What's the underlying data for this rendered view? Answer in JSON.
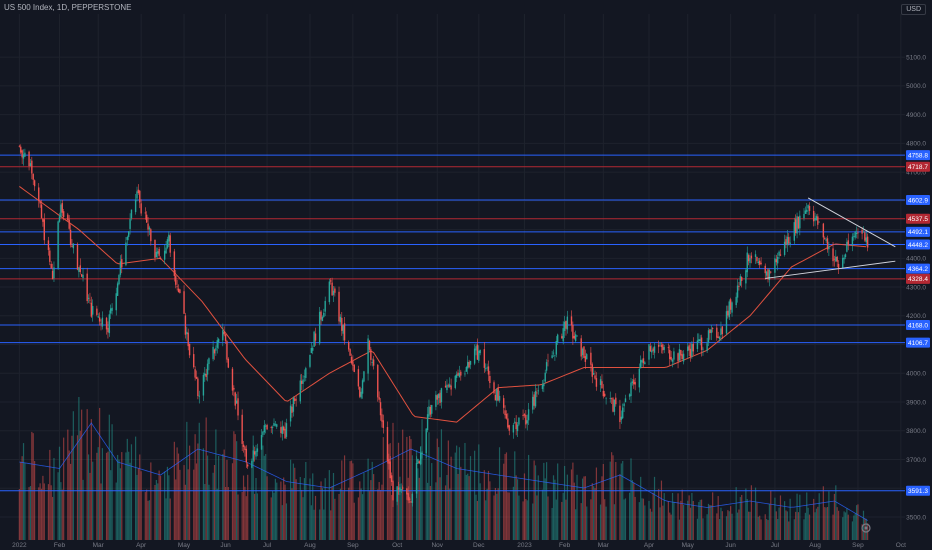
{
  "header": {
    "title": "US 500 Index, 1D, PEPPERSTONE",
    "currency": "USD"
  },
  "colors": {
    "background": "#131722",
    "up": "#26a69a",
    "down": "#ef5350",
    "ma": "#e0513f",
    "volume_ma": "#2962ff",
    "blue_level": "#2962ff",
    "red_level": "#b22833",
    "trendline": "#d1d4dc",
    "grid": "#1e222d"
  },
  "chart_data": {
    "type": "candlestick",
    "symbol": "US 500 Index",
    "interval": "1D",
    "source": "PEPPERSTONE",
    "y_range": [
      3420,
      5250
    ],
    "x_range": [
      "2021-12-20",
      "2023-10-05"
    ],
    "y_ticks": [
      3400,
      3500,
      3600,
      3700,
      3800,
      3900,
      4000,
      4100,
      4200,
      4300,
      4400,
      4500,
      4600,
      4700,
      4800,
      4900,
      5000,
      5100
    ],
    "y_tick_labels": [
      "3400.0",
      "3500.0",
      "3600.0",
      "3700.0",
      "3800.0",
      "3900.0",
      "4000.0",
      "4100.0",
      "4200.0",
      "4300.0",
      "4400.0",
      "4500.0",
      "4600.0",
      "4700.0",
      "4800.0",
      "4900.0",
      "5000.0",
      "5100.0"
    ],
    "x_ticks": [
      {
        "date": "2022-01-03",
        "label": "2022"
      },
      {
        "date": "2022-02-01",
        "label": "Feb"
      },
      {
        "date": "2022-03-01",
        "label": "Mar"
      },
      {
        "date": "2022-04-01",
        "label": "Apr"
      },
      {
        "date": "2022-05-02",
        "label": "May"
      },
      {
        "date": "2022-06-01",
        "label": "Jun"
      },
      {
        "date": "2022-07-01",
        "label": "Jul"
      },
      {
        "date": "2022-08-01",
        "label": "Aug"
      },
      {
        "date": "2022-09-01",
        "label": "Sep"
      },
      {
        "date": "2022-10-03",
        "label": "Oct"
      },
      {
        "date": "2022-11-01",
        "label": "Nov"
      },
      {
        "date": "2022-12-01",
        "label": "Dec"
      },
      {
        "date": "2023-01-03",
        "label": "2023"
      },
      {
        "date": "2023-02-01",
        "label": "Feb"
      },
      {
        "date": "2023-03-01",
        "label": "Mar"
      },
      {
        "date": "2023-04-03",
        "label": "Apr"
      },
      {
        "date": "2023-05-01",
        "label": "May"
      },
      {
        "date": "2023-06-01",
        "label": "Jun"
      },
      {
        "date": "2023-07-03",
        "label": "Jul"
      },
      {
        "date": "2023-08-01",
        "label": "Aug"
      },
      {
        "date": "2023-09-01",
        "label": "Sep"
      },
      {
        "date": "2023-10-02",
        "label": "Oct"
      }
    ],
    "price_path": [
      {
        "date": "2022-01-03",
        "close": 4790
      },
      {
        "date": "2022-01-12",
        "close": 4720
      },
      {
        "date": "2022-01-27",
        "close": 4330
      },
      {
        "date": "2022-02-02",
        "close": 4590
      },
      {
        "date": "2022-02-24",
        "close": 4220
      },
      {
        "date": "2022-03-08",
        "close": 4170
      },
      {
        "date": "2022-03-29",
        "close": 4630
      },
      {
        "date": "2022-04-12",
        "close": 4400
      },
      {
        "date": "2022-04-21",
        "close": 4460
      },
      {
        "date": "2022-05-12",
        "close": 3930
      },
      {
        "date": "2022-05-30",
        "close": 4160
      },
      {
        "date": "2022-06-16",
        "close": 3680
      },
      {
        "date": "2022-06-30",
        "close": 3820
      },
      {
        "date": "2022-07-14",
        "close": 3800
      },
      {
        "date": "2022-08-16",
        "close": 4310
      },
      {
        "date": "2022-09-06",
        "close": 3920
      },
      {
        "date": "2022-09-12",
        "close": 4130
      },
      {
        "date": "2022-09-30",
        "close": 3580
      },
      {
        "date": "2022-10-13",
        "close": 3580
      },
      {
        "date": "2022-10-27",
        "close": 3880
      },
      {
        "date": "2022-11-14",
        "close": 3980
      },
      {
        "date": "2022-12-01",
        "close": 4080
      },
      {
        "date": "2022-12-22",
        "close": 3820
      },
      {
        "date": "2023-01-05",
        "close": 3850
      },
      {
        "date": "2023-02-02",
        "close": 4180
      },
      {
        "date": "2023-02-24",
        "close": 3980
      },
      {
        "date": "2023-03-13",
        "close": 3850
      },
      {
        "date": "2023-04-03",
        "close": 4100
      },
      {
        "date": "2023-04-25",
        "close": 4060
      },
      {
        "date": "2023-05-25",
        "close": 4150
      },
      {
        "date": "2023-06-15",
        "close": 4420
      },
      {
        "date": "2023-06-26",
        "close": 4330
      },
      {
        "date": "2023-07-27",
        "close": 4590
      },
      {
        "date": "2023-08-18",
        "close": 4370
      },
      {
        "date": "2023-09-01",
        "close": 4510
      },
      {
        "date": "2023-09-08",
        "close": 4460
      }
    ],
    "moving_average": [
      {
        "date": "2022-01-03",
        "value": 4650
      },
      {
        "date": "2022-02-15",
        "value": 4500
      },
      {
        "date": "2022-03-15",
        "value": 4380
      },
      {
        "date": "2022-04-15",
        "value": 4400
      },
      {
        "date": "2022-05-15",
        "value": 4250
      },
      {
        "date": "2022-06-15",
        "value": 4050
      },
      {
        "date": "2022-07-15",
        "value": 3900
      },
      {
        "date": "2022-08-15",
        "value": 4000
      },
      {
        "date": "2022-09-15",
        "value": 4080
      },
      {
        "date": "2022-10-15",
        "value": 3850
      },
      {
        "date": "2022-11-15",
        "value": 3830
      },
      {
        "date": "2022-12-15",
        "value": 3950
      },
      {
        "date": "2023-01-15",
        "value": 3960
      },
      {
        "date": "2023-02-15",
        "value": 4020
      },
      {
        "date": "2023-03-15",
        "value": 4020
      },
      {
        "date": "2023-04-15",
        "value": 4020
      },
      {
        "date": "2023-05-15",
        "value": 4080
      },
      {
        "date": "2023-06-15",
        "value": 4200
      },
      {
        "date": "2023-07-15",
        "value": 4370
      },
      {
        "date": "2023-08-15",
        "value": 4450
      },
      {
        "date": "2023-09-08",
        "value": 4440
      }
    ],
    "horizontal_levels": [
      {
        "value": 4758.8,
        "label": "4758.8",
        "color": "blue"
      },
      {
        "value": 4718.7,
        "label": "4718.7",
        "color": "red"
      },
      {
        "value": 4602.9,
        "label": "4602.9",
        "color": "blue"
      },
      {
        "value": 4537.5,
        "label": "4537.5",
        "color": "red"
      },
      {
        "value": 4492.1,
        "label": "4492.1",
        "color": "blue"
      },
      {
        "value": 4448.2,
        "label": "4448.2",
        "color": "blue"
      },
      {
        "value": 4364.2,
        "label": "4364.2",
        "color": "blue"
      },
      {
        "value": 4328.4,
        "label": "4328.4",
        "color": "red"
      },
      {
        "value": 4168.0,
        "label": "4168.0",
        "color": "blue"
      },
      {
        "value": 4106.7,
        "label": "4106.7",
        "color": "blue"
      },
      {
        "value": 3591.3,
        "label": "3591.3",
        "color": "blue"
      }
    ],
    "trendlines": [
      {
        "from": {
          "date": "2023-07-27",
          "value": 4610
        },
        "to": {
          "date": "2023-09-28",
          "value": 4440
        }
      },
      {
        "from": {
          "date": "2023-06-26",
          "value": 4330
        },
        "to": {
          "date": "2023-09-28",
          "value": 4390
        }
      }
    ],
    "volume": {
      "scale_max": 100,
      "levels": [
        {
          "date": "2022-01-03",
          "value": 60
        },
        {
          "date": "2022-02-01",
          "value": 55
        },
        {
          "date": "2022-02-24",
          "value": 90
        },
        {
          "date": "2022-03-15",
          "value": 60
        },
        {
          "date": "2022-04-15",
          "value": 50
        },
        {
          "date": "2022-05-12",
          "value": 70
        },
        {
          "date": "2022-06-16",
          "value": 60
        },
        {
          "date": "2022-07-15",
          "value": 45
        },
        {
          "date": "2022-08-15",
          "value": 40
        },
        {
          "date": "2022-09-15",
          "value": 55
        },
        {
          "date": "2022-10-13",
          "value": 70
        },
        {
          "date": "2022-11-15",
          "value": 55
        },
        {
          "date": "2022-12-15",
          "value": 50
        },
        {
          "date": "2023-01-15",
          "value": 45
        },
        {
          "date": "2023-02-15",
          "value": 40
        },
        {
          "date": "2023-03-13",
          "value": 50
        },
        {
          "date": "2023-04-15",
          "value": 30
        },
        {
          "date": "2023-05-15",
          "value": 25
        },
        {
          "date": "2023-06-15",
          "value": 30
        },
        {
          "date": "2023-07-15",
          "value": 25
        },
        {
          "date": "2023-08-15",
          "value": 30
        },
        {
          "date": "2023-09-08",
          "value": 15
        }
      ]
    }
  }
}
